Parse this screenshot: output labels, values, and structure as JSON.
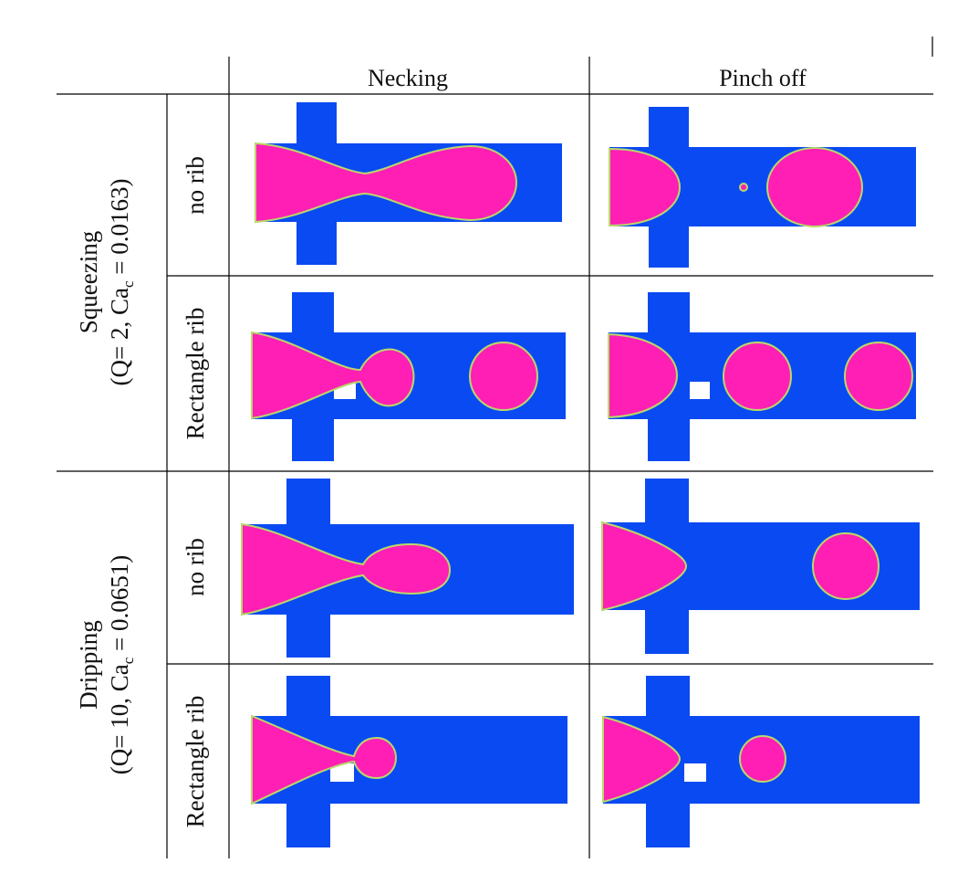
{
  "columns": {
    "necking": "Necking",
    "pinch_off": "Pinch off"
  },
  "regimes": {
    "squeezing": {
      "name": "Squeezing",
      "params_open": "(Q= 2, Ca",
      "params_sub": "c",
      "params_close": " = 0.0163)"
    },
    "dripping": {
      "name": "Dripping",
      "params_open": "(Q= 10, Ca",
      "params_sub": "c",
      "params_close": " = 0.0651)"
    }
  },
  "rows": {
    "no_rib": "no rib",
    "rectangle_rib": "Rectangle rib"
  },
  "colors": {
    "channel": "#0a4af2",
    "droplet": "#ff1fb4",
    "interface": "#b9d96a",
    "background": "#ffffff"
  }
}
